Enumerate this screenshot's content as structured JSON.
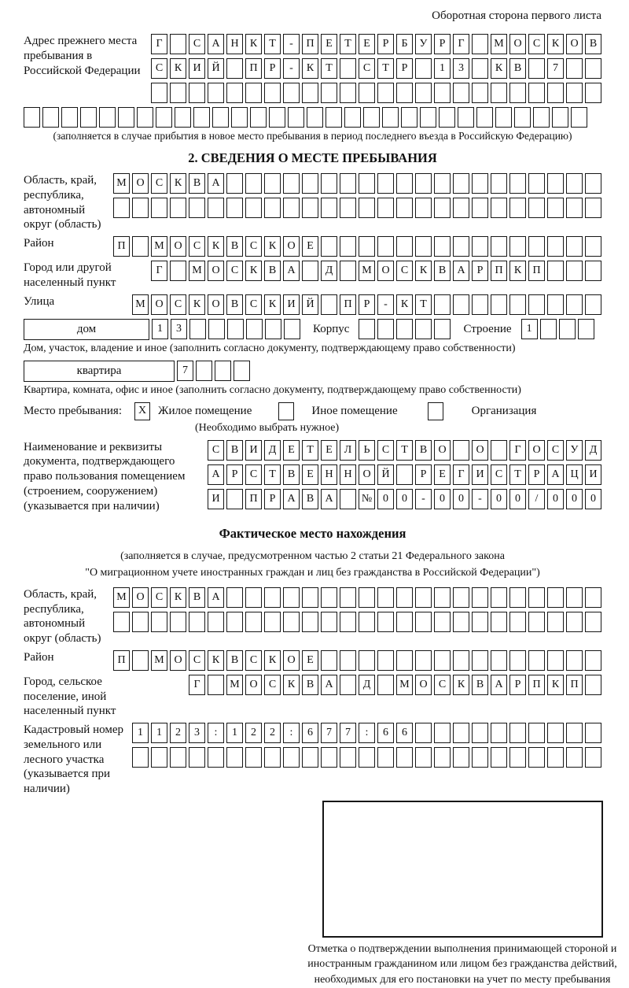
{
  "page": {
    "top_right": "Оборотная сторона первого листа"
  },
  "prev_address": {
    "label": "Адрес прежнего места пребывания в Российской Федерации",
    "row1": [
      "Г",
      "",
      "С",
      "А",
      "Н",
      "К",
      "Т",
      "-",
      "П",
      "Е",
      "Т",
      "Е",
      "Р",
      "Б",
      "У",
      "Р",
      "Г",
      "",
      "М",
      "О",
      "С",
      "К",
      "О",
      "В"
    ],
    "row2": [
      "С",
      "К",
      "И",
      "Й",
      "",
      "П",
      "Р",
      "-",
      "К",
      "Т",
      "",
      "С",
      "Т",
      "Р",
      "",
      "1",
      "3",
      "",
      "К",
      "В",
      "",
      "7",
      "",
      ""
    ],
    "row3": [
      "",
      "",
      "",
      "",
      "",
      "",
      "",
      "",
      "",
      "",
      "",
      "",
      "",
      "",
      "",
      "",
      "",
      "",
      "",
      "",
      "",
      "",
      "",
      ""
    ],
    "row4": [
      "",
      "",
      "",
      "",
      "",
      "",
      "",
      "",
      "",
      "",
      "",
      "",
      "",
      "",
      "",
      "",
      "",
      "",
      "",
      "",
      "",
      "",
      "",
      "",
      "",
      "",
      "",
      "",
      "",
      ""
    ],
    "caption": "(заполняется в случае прибытия в новое место пребывания в период последнего въезда в Российскую Федерацию)"
  },
  "section2": {
    "title": "2. СВЕДЕНИЯ О МЕСТЕ ПРЕБЫВАНИЯ",
    "oblast": {
      "label": "Область, край, республика, автономный округ (область)",
      "row1": [
        "М",
        "О",
        "С",
        "К",
        "В",
        "А",
        "",
        "",
        "",
        "",
        "",
        "",
        "",
        "",
        "",
        "",
        "",
        "",
        "",
        "",
        "",
        "",
        "",
        "",
        "",
        ""
      ],
      "row2": [
        "",
        "",
        "",
        "",
        "",
        "",
        "",
        "",
        "",
        "",
        "",
        "",
        "",
        "",
        "",
        "",
        "",
        "",
        "",
        "",
        "",
        "",
        "",
        "",
        "",
        ""
      ]
    },
    "raion": {
      "label": "Район",
      "row": [
        "П",
        "",
        "М",
        "О",
        "С",
        "К",
        "В",
        "С",
        "К",
        "О",
        "Е",
        "",
        "",
        "",
        "",
        "",
        "",
        "",
        "",
        "",
        "",
        "",
        "",
        "",
        "",
        ""
      ]
    },
    "gorod": {
      "label": "Город или другой населенный пункт",
      "row": [
        "Г",
        "",
        "М",
        "О",
        "С",
        "К",
        "В",
        "А",
        "",
        "Д",
        "",
        "М",
        "О",
        "С",
        "К",
        "В",
        "А",
        "Р",
        "П",
        "К",
        "П",
        "",
        "",
        ""
      ]
    },
    "ulitsa": {
      "label": "Улица",
      "row": [
        "М",
        "О",
        "С",
        "К",
        "О",
        "В",
        "С",
        "К",
        "И",
        "Й",
        "",
        "П",
        "Р",
        "-",
        "К",
        "Т",
        "",
        "",
        "",
        "",
        "",
        "",
        "",
        "",
        ""
      ]
    },
    "dom": {
      "box_label": "дом",
      "cells": [
        "1",
        "3",
        "",
        "",
        "",
        "",
        "",
        ""
      ],
      "korpus_label": "Корпус",
      "korpus_cells": [
        "",
        "",
        "",
        "",
        ""
      ],
      "stroenie_label": "Строение",
      "stroenie_cells": [
        "1",
        "",
        "",
        ""
      ],
      "caption": "Дом, участок, владение и иное (заполнить согласно документу, подтверждающему право собственности)"
    },
    "kvartira": {
      "box_label": "квартира",
      "cells": [
        "7",
        "",
        "",
        ""
      ],
      "caption": "Квартира, комната, офис и иное (заполнить согласно документу, подтверждающему право собственности)"
    },
    "mesto": {
      "label": "Место пребывания:",
      "options": [
        {
          "mark": "X",
          "label": "Жилое помещение"
        },
        {
          "mark": "",
          "label": "Иное помещение"
        },
        {
          "mark": "",
          "label": "Организация"
        }
      ],
      "hint": "(Необходимо выбрать нужное)"
    },
    "doc": {
      "label": "Наименование и реквизиты документа, подтверждающего право пользования помещением (строением, сооружением) (указывается при наличии)",
      "row1": [
        "С",
        "В",
        "И",
        "Д",
        "Е",
        "Т",
        "Е",
        "Л",
        "Ь",
        "С",
        "Т",
        "В",
        "О",
        "",
        "О",
        "",
        "Г",
        "О",
        "С",
        "У",
        "Д"
      ],
      "row2": [
        "А",
        "Р",
        "С",
        "Т",
        "В",
        "Е",
        "Н",
        "Н",
        "О",
        "Й",
        "",
        "Р",
        "Е",
        "Г",
        "И",
        "С",
        "Т",
        "Р",
        "А",
        "Ц",
        "И"
      ],
      "row3": [
        "И",
        "",
        "П",
        "Р",
        "А",
        "В",
        "А",
        "",
        "№",
        "0",
        "0",
        "-",
        "0",
        "0",
        "-",
        "0",
        "0",
        "/",
        "0",
        "0",
        "0"
      ]
    }
  },
  "fakt": {
    "title": "Фактическое место нахождения",
    "caption1": "(заполняется в случае, предусмотренном частью 2 статьи 21 Федерального закона",
    "caption2": "\"О миграционном учете иностранных граждан и лиц без гражданства в Российской Федерации\")",
    "oblast": {
      "label": "Область, край, республика, автономный округ (область)",
      "row1": [
        "М",
        "О",
        "С",
        "К",
        "В",
        "А",
        "",
        "",
        "",
        "",
        "",
        "",
        "",
        "",
        "",
        "",
        "",
        "",
        "",
        "",
        "",
        "",
        "",
        "",
        "",
        ""
      ],
      "row2": [
        "",
        "",
        "",
        "",
        "",
        "",
        "",
        "",
        "",
        "",
        "",
        "",
        "",
        "",
        "",
        "",
        "",
        "",
        "",
        "",
        "",
        "",
        "",
        "",
        "",
        ""
      ]
    },
    "raion": {
      "label": "Район",
      "row": [
        "П",
        "",
        "М",
        "О",
        "С",
        "К",
        "В",
        "С",
        "К",
        "О",
        "Е",
        "",
        "",
        "",
        "",
        "",
        "",
        "",
        "",
        "",
        "",
        "",
        "",
        "",
        "",
        ""
      ]
    },
    "gorod": {
      "label": "Город, сельское поселение, иной населенный пункт",
      "row": [
        "Г",
        "",
        "М",
        "О",
        "С",
        "К",
        "В",
        "А",
        "",
        "Д",
        "",
        "М",
        "О",
        "С",
        "К",
        "В",
        "А",
        "Р",
        "П",
        "К",
        "П",
        ""
      ]
    },
    "kadastr": {
      "label": "Кадастровый номер земельного или лесного участка (указывается при наличии)",
      "row1": [
        "1",
        "1",
        "2",
        "3",
        ":",
        "1",
        "2",
        "2",
        ":",
        "6",
        "7",
        "7",
        ":",
        "6",
        "6",
        "",
        "",
        "",
        "",
        "",
        "",
        "",
        "",
        "",
        ""
      ],
      "row2": [
        "",
        "",
        "",
        "",
        "",
        "",
        "",
        "",
        "",
        "",
        "",
        "",
        "",
        "",
        "",
        "",
        "",
        "",
        "",
        "",
        "",
        "",
        "",
        "",
        ""
      ]
    },
    "stamp_caption": "Отметка о подтверждении выполнения принимающей стороной и иностранным гражданином или лицом без гражданства действий, необходимых для его постановки на учет по месту пребывания"
  }
}
